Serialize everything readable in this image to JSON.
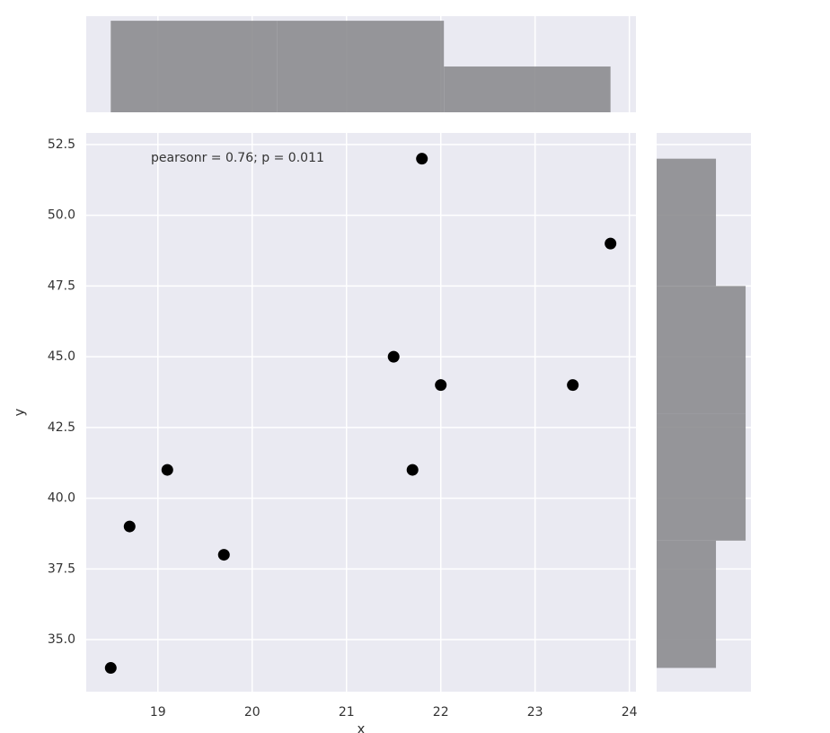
{
  "chart_data": [
    {
      "type": "scatter",
      "x_label": "x",
      "y_label": "y",
      "annotation": "pearsonr = 0.76; p = 0.011",
      "x": [
        18.5,
        18.7,
        19.1,
        19.7,
        21.5,
        21.7,
        21.8,
        22.0,
        23.4,
        23.8
      ],
      "values": [
        34,
        39,
        41,
        38,
        45,
        41,
        52,
        44,
        44,
        49
      ],
      "color": "#000000",
      "background": "#eaeaf2",
      "grid": true,
      "xlim": [
        18.24,
        24.07
      ],
      "ylim": [
        33.16,
        52.91
      ],
      "xticks": [
        19,
        20,
        21,
        22,
        23,
        24
      ],
      "yticks": [
        {
          "value": 35,
          "label": "35.0"
        },
        37.5,
        {
          "value": 40,
          "label": "40.0"
        },
        42.5,
        {
          "value": 45,
          "label": "45.0"
        },
        47.5,
        {
          "value": 50,
          "label": "50.0"
        },
        52.5
      ]
    },
    {
      "type": "histogram",
      "orientation": "vertical",
      "bins": [
        18.5,
        20.267,
        22.033,
        23.8
      ],
      "values": [
        4,
        4,
        2
      ],
      "color": "#8c8c8f",
      "xlim": [
        18.24,
        24.07
      ],
      "ylim": [
        0,
        4.2
      ]
    },
    {
      "type": "histogram",
      "orientation": "horizontal",
      "bins": [
        34,
        38.5,
        43,
        47.5,
        52
      ],
      "values": [
        2,
        3,
        3,
        2
      ],
      "color": "#8c8c8f",
      "ylim": [
        33.16,
        52.91
      ],
      "xlim": [
        0,
        3.18
      ]
    }
  ]
}
